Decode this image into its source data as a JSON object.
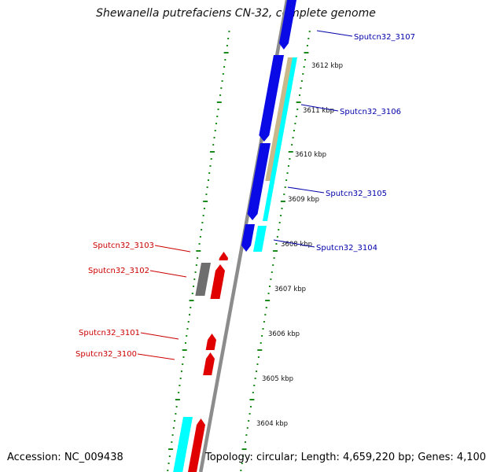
{
  "title": "Shewanella putrefaciens CN-32, complete genome",
  "footer": {
    "accession": "Accession: NC_009438",
    "topology": "Topology: circular; Length: 4,659,220 bp; Genes: 4,100"
  },
  "colors": {
    "backbone": "#8c8c8c",
    "forward_cds": "#0a0ae6",
    "reverse_cds": "#e00000",
    "rna": "#00ffff",
    "other": "#c8b88a",
    "pseudo": "#6e6e6e",
    "gc_dots": "#1a8a1a",
    "label_blue": "#0000aa",
    "label_red": "#cc0000"
  },
  "scale": {
    "ticks": [
      "3612 kbp",
      "3611 kbp",
      "3610 kbp",
      "3609 kbp",
      "3608 kbp",
      "3607 kbp",
      "3606 kbp",
      "3605 kbp",
      "3604 kbp"
    ]
  },
  "gene_labels": {
    "forward": [
      "Sputcn32_3107",
      "Sputcn32_3106",
      "Sputcn32_3105",
      "Sputcn32_3104"
    ],
    "reverse": [
      "Sputcn32_3103",
      "Sputcn32_3102",
      "Sputcn32_3101",
      "Sputcn32_3100"
    ]
  }
}
